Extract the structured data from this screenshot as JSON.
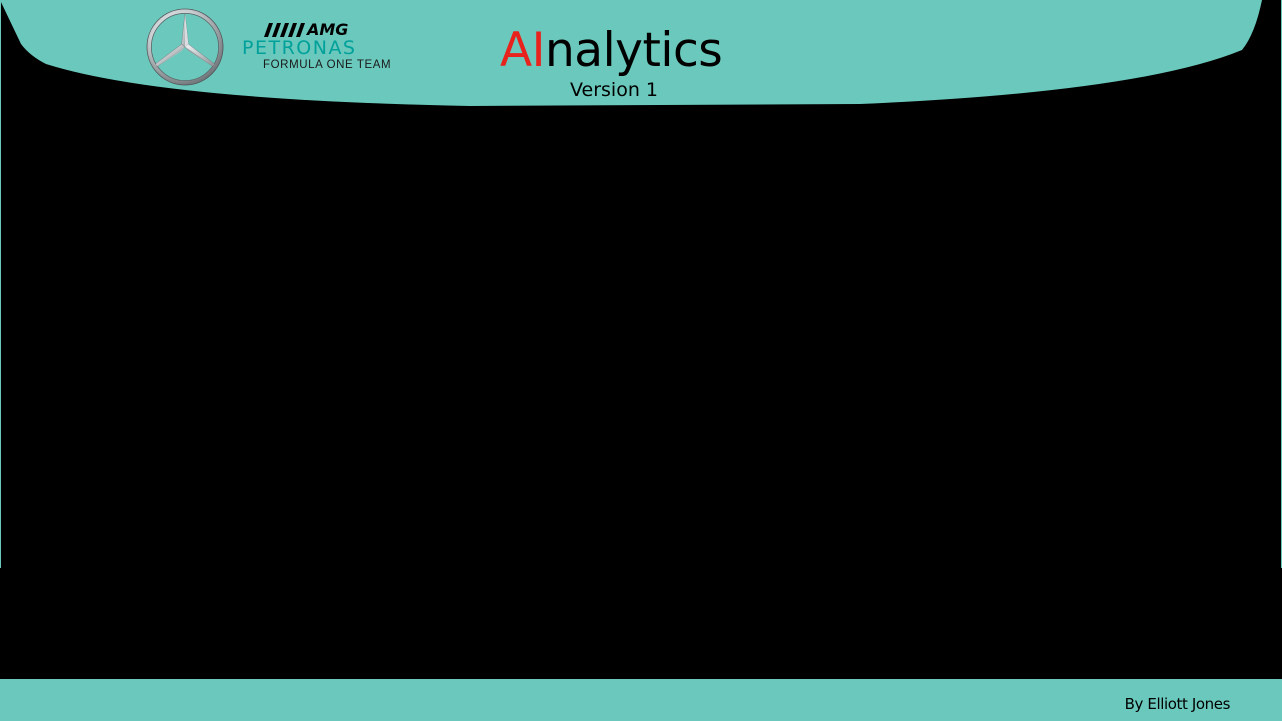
{
  "header": {
    "sponsor": {
      "amg_label": "AMG",
      "petronas_label": "PETRONAS",
      "team_label": "FORMULA ONE TEAM"
    },
    "title": {
      "ai_part": "AI",
      "rest_part": "nalytics"
    },
    "version_label": "Version 1"
  },
  "footer": {
    "author_label": "By Elliott Jones"
  },
  "colors": {
    "teal": "#6ac8bc",
    "petronas_green": "#00a19b",
    "title_accent": "#e8221c",
    "background": "#000000"
  },
  "icons": {
    "brand_logo": "mercedes-star-icon",
    "amg_mark": "amg-stripes-icon"
  }
}
